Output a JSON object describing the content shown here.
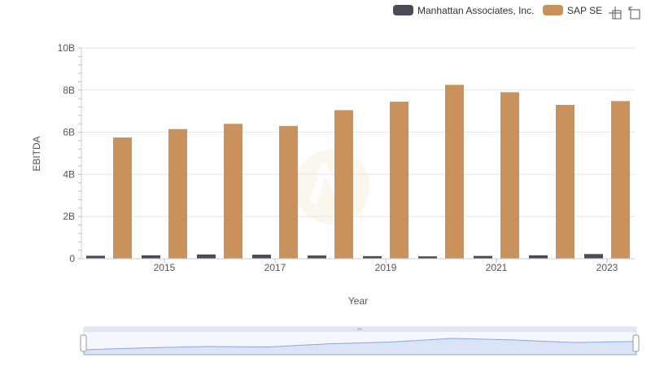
{
  "chart_data": {
    "type": "bar",
    "xlabel": "Year",
    "ylabel": "EBITDA",
    "ylim": [
      0,
      10000000000
    ],
    "y_ticks": [
      {
        "value": 0,
        "label": "0"
      },
      {
        "value": 2000000000,
        "label": "2B"
      },
      {
        "value": 4000000000,
        "label": "4B"
      },
      {
        "value": 6000000000,
        "label": "6B"
      },
      {
        "value": 8000000000,
        "label": "8B"
      },
      {
        "value": 10000000000,
        "label": "10B"
      }
    ],
    "categories": [
      "2014",
      "2015",
      "2016",
      "2017",
      "2018",
      "2019",
      "2020",
      "2021",
      "2022",
      "2023"
    ],
    "x_tick_labels": [
      "2015",
      "2017",
      "2019",
      "2021",
      "2023"
    ],
    "grid": true,
    "legend_position": "top-right",
    "series": [
      {
        "name": "Manhattan Associates, Inc.",
        "color": "#4a4a58",
        "values": [
          140000000,
          160000000,
          200000000,
          190000000,
          150000000,
          120000000,
          110000000,
          130000000,
          160000000,
          220000000
        ]
      },
      {
        "name": "SAP SE",
        "color": "#c9915c",
        "values": [
          5750000000,
          6150000000,
          6400000000,
          6300000000,
          7050000000,
          7450000000,
          8250000000,
          7900000000,
          7300000000,
          7480000000
        ]
      }
    ]
  },
  "toolbar": {
    "zoom_icon": "zoom-select-icon",
    "reset_icon": "zoom-reset-icon"
  },
  "colors": {
    "grid": "#e6e6e6",
    "navigator_fill": "#dbe4f7",
    "navigator_line": "#8ba6e0"
  }
}
